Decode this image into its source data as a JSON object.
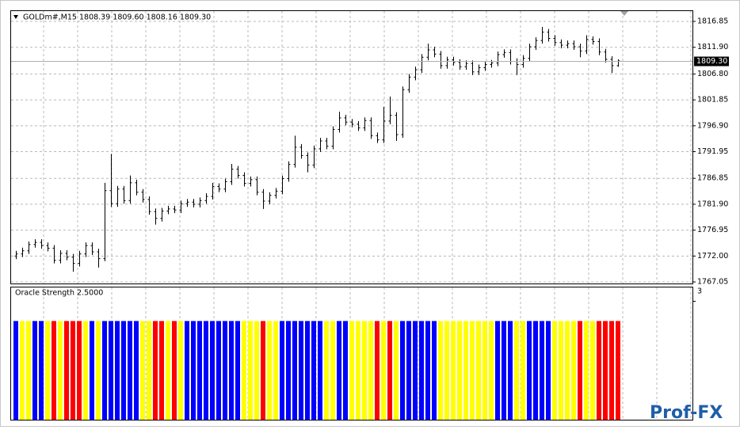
{
  "chart_data": [
    {
      "type": "ohlc",
      "title": "GOLDm#,M15  1808.39 1809.60 1808.16 1809.30",
      "color": "#000000",
      "open": [
        1772.0,
        1772.4,
        1773.0,
        1774.2,
        1774.6,
        1774.0,
        1773.5,
        1771.2,
        1772.5,
        1771.8,
        1770.6,
        1772.4,
        1774.0,
        1772.8,
        1771.5,
        1784.5,
        1782.0,
        1784.8,
        1782.6,
        1786.0,
        1784.2,
        1782.8,
        1780.5,
        1779.2,
        1780.6,
        1781.0,
        1780.8,
        1782.0,
        1782.3,
        1781.9,
        1782.6,
        1783.4,
        1785.3,
        1784.8,
        1786.2,
        1788.6,
        1787.4,
        1785.9,
        1786.6,
        1784.2,
        1782.5,
        1783.6,
        1784.4,
        1786.8,
        1789.5,
        1792.8,
        1791.2,
        1789.4,
        1792.5,
        1794.0,
        1793.0,
        1796.2,
        1798.4,
        1797.6,
        1797.2,
        1796.5,
        1797.9,
        1795.0,
        1794.2,
        1797.8,
        1798.9,
        1795.2,
        1803.8,
        1806.2,
        1807.6,
        1810.0,
        1811.4,
        1810.6,
        1808.4,
        1809.5,
        1809.0,
        1808.2,
        1808.8,
        1807.2,
        1808.0,
        1808.6,
        1808.9,
        1810.5,
        1810.9,
        1809.2,
        1808.6,
        1809.8,
        1812.0,
        1813.2,
        1814.8,
        1813.6,
        1812.8,
        1812.3,
        1812.6,
        1812.0,
        1811.2,
        1813.4,
        1813.0,
        1811.0,
        1809.6,
        1808.39
      ],
      "high": [
        1773.0,
        1773.6,
        1774.8,
        1775.2,
        1775.2,
        1774.6,
        1774.1,
        1773.1,
        1773.1,
        1772.4,
        1773.0,
        1774.6,
        1774.6,
        1773.4,
        1786.0,
        1791.5,
        1785.4,
        1785.4,
        1787.4,
        1786.6,
        1784.8,
        1783.4,
        1781.1,
        1781.2,
        1781.6,
        1781.6,
        1782.6,
        1782.9,
        1782.9,
        1783.2,
        1784.0,
        1786.0,
        1785.9,
        1786.8,
        1789.6,
        1789.2,
        1788.0,
        1787.2,
        1787.2,
        1784.8,
        1784.2,
        1785.0,
        1787.4,
        1790.1,
        1795.0,
        1793.4,
        1791.8,
        1793.1,
        1794.6,
        1794.6,
        1796.8,
        1799.6,
        1799.0,
        1798.2,
        1797.8,
        1798.5,
        1798.5,
        1795.6,
        1800.5,
        1802.5,
        1799.5,
        1804.4,
        1806.8,
        1808.2,
        1810.6,
        1812.6,
        1812.0,
        1811.2,
        1810.1,
        1810.1,
        1809.6,
        1809.4,
        1809.4,
        1808.6,
        1809.2,
        1809.5,
        1811.1,
        1811.5,
        1811.5,
        1809.8,
        1810.4,
        1812.6,
        1813.8,
        1815.8,
        1815.4,
        1814.2,
        1813.4,
        1813.2,
        1813.2,
        1812.6,
        1814.2,
        1814.0,
        1813.6,
        1811.6,
        1810.2,
        1809.6
      ],
      "low": [
        1771.4,
        1771.8,
        1772.4,
        1773.6,
        1773.4,
        1772.9,
        1770.6,
        1770.6,
        1771.2,
        1769.0,
        1770.0,
        1771.8,
        1772.2,
        1769.8,
        1771.0,
        1781.4,
        1781.4,
        1782.0,
        1782.0,
        1783.6,
        1782.2,
        1779.9,
        1778.0,
        1778.6,
        1780.0,
        1780.2,
        1780.2,
        1781.4,
        1781.3,
        1781.3,
        1782.0,
        1782.8,
        1784.2,
        1784.2,
        1785.6,
        1786.8,
        1785.3,
        1785.3,
        1783.6,
        1781.0,
        1781.9,
        1783.0,
        1783.8,
        1786.2,
        1788.9,
        1790.6,
        1788.0,
        1788.8,
        1791.9,
        1792.4,
        1792.4,
        1795.6,
        1797.0,
        1796.6,
        1795.9,
        1795.9,
        1794.4,
        1793.6,
        1793.6,
        1797.2,
        1794.0,
        1794.6,
        1803.2,
        1805.6,
        1807.0,
        1809.4,
        1810.0,
        1807.8,
        1807.8,
        1808.4,
        1807.6,
        1807.6,
        1806.6,
        1806.6,
        1807.4,
        1808.0,
        1808.3,
        1809.9,
        1808.6,
        1806.6,
        1808.0,
        1809.2,
        1811.4,
        1812.6,
        1813.0,
        1812.2,
        1811.7,
        1811.7,
        1811.4,
        1810.0,
        1810.6,
        1812.4,
        1810.4,
        1809.0,
        1807.0,
        1808.16
      ],
      "close": [
        1772.4,
        1773.0,
        1774.2,
        1774.6,
        1774.0,
        1773.5,
        1771.2,
        1772.5,
        1771.8,
        1770.6,
        1772.4,
        1774.0,
        1772.8,
        1771.5,
        1784.5,
        1782.0,
        1784.8,
        1782.6,
        1786.0,
        1784.2,
        1782.8,
        1780.5,
        1779.2,
        1780.6,
        1781.0,
        1780.8,
        1782.0,
        1782.3,
        1781.9,
        1782.6,
        1783.4,
        1785.3,
        1784.8,
        1786.2,
        1788.6,
        1787.4,
        1785.9,
        1786.6,
        1784.2,
        1782.5,
        1783.6,
        1784.4,
        1786.8,
        1789.5,
        1792.8,
        1791.2,
        1789.4,
        1792.5,
        1794.0,
        1793.0,
        1796.2,
        1798.4,
        1797.6,
        1797.2,
        1796.5,
        1797.9,
        1795.0,
        1794.2,
        1797.8,
        1798.9,
        1795.2,
        1803.8,
        1806.2,
        1807.6,
        1810.0,
        1811.4,
        1810.6,
        1808.4,
        1809.5,
        1809.0,
        1808.2,
        1808.8,
        1807.2,
        1808.0,
        1808.6,
        1808.9,
        1810.5,
        1810.9,
        1809.2,
        1808.6,
        1809.8,
        1812.0,
        1813.2,
        1814.8,
        1813.6,
        1812.8,
        1812.3,
        1812.6,
        1812.0,
        1811.2,
        1813.4,
        1813.0,
        1811.0,
        1809.6,
        1808.4,
        1809.3
      ],
      "ylim": [
        1766.75,
        1818.82
      ],
      "yticks": [
        1767.05,
        {
          "value": 1772,
          "label": "1772.00"
        },
        1776.95,
        {
          "value": 1781.9,
          "label": "1781.90"
        },
        1786.85,
        1791.95,
        {
          "value": 1796.9,
          "label": "1796.90"
        },
        1801.85,
        {
          "value": 1806.8,
          "label": "1806.80"
        },
        {
          "value": 1811.9,
          "label": "1811.90"
        },
        1816.85
      ],
      "current_price": {
        "value": 1809.3,
        "label": "1809.30"
      },
      "grid": true
    },
    {
      "type": "bar",
      "title": "Oracle Strength 2.5000",
      "values": [
        2.5,
        2.5,
        2.5,
        2.5,
        2.5,
        2.5,
        2.5,
        2.5,
        2.5,
        2.5,
        2.5,
        2.5,
        2.5,
        2.5,
        2.5,
        2.5,
        2.5,
        2.5,
        2.5,
        2.5,
        2.5,
        2.5,
        2.5,
        2.5,
        2.5,
        2.5,
        2.5,
        2.5,
        2.5,
        2.5,
        2.5,
        2.5,
        2.5,
        2.5,
        2.5,
        2.5,
        2.5,
        2.5,
        2.5,
        2.5,
        2.5,
        2.5,
        2.5,
        2.5,
        2.5,
        2.5,
        2.5,
        2.5,
        2.5,
        2.5,
        2.5,
        2.5,
        2.5,
        2.5,
        2.5,
        2.5,
        2.5,
        2.5,
        2.5,
        2.5,
        2.5,
        2.5,
        2.5,
        2.5,
        2.5,
        2.5,
        2.5,
        2.5,
        2.5,
        2.5,
        2.5,
        2.5,
        2.5,
        2.5,
        2.5,
        2.5,
        2.5,
        2.5,
        2.5,
        2.5,
        2.5,
        2.5,
        2.5,
        2.5,
        2.5,
        2.5,
        2.5,
        2.5,
        2.5,
        2.5,
        2.5,
        2.5,
        2.5,
        2.5,
        2.5,
        2.5
      ],
      "colors": [
        "#0000ff",
        "#ffff00",
        "#ffff00",
        "#0000ff",
        "#0000ff",
        "#ffff00",
        "#ff0000",
        "#ffff00",
        "#ff0000",
        "#ff0000",
        "#ff0000",
        "#ffff00",
        "#0000ff",
        "#ffff00",
        "#0000ff",
        "#0000ff",
        "#0000ff",
        "#0000ff",
        "#0000ff",
        "#0000ff",
        "#ffff00",
        "#ffff00",
        "#ff0000",
        "#ff0000",
        "#ffff00",
        "#ff0000",
        "#ffff00",
        "#0000ff",
        "#0000ff",
        "#0000ff",
        "#0000ff",
        "#0000ff",
        "#0000ff",
        "#0000ff",
        "#0000ff",
        "#0000ff",
        "#ffff00",
        "#ffff00",
        "#ffff00",
        "#ff0000",
        "#ffff00",
        "#ffff00",
        "#0000ff",
        "#0000ff",
        "#0000ff",
        "#0000ff",
        "#0000ff",
        "#0000ff",
        "#0000ff",
        "#ffff00",
        "#ffff00",
        "#0000ff",
        "#0000ff",
        "#ffff00",
        "#ffff00",
        "#ffff00",
        "#ffff00",
        "#ff0000",
        "#ffff00",
        "#ff0000",
        "#ffff00",
        "#0000ff",
        "#0000ff",
        "#0000ff",
        "#0000ff",
        "#0000ff",
        "#0000ff",
        "#ffff00",
        "#ffff00",
        "#ffff00",
        "#ffff00",
        "#ffff00",
        "#ffff00",
        "#ffff00",
        "#ffff00",
        "#ffff00",
        "#0000ff",
        "#0000ff",
        "#0000ff",
        "#ffff00",
        "#ffff00",
        "#0000ff",
        "#0000ff",
        "#0000ff",
        "#0000ff",
        "#ffff00",
        "#ffff00",
        "#ffff00",
        "#ffff00",
        "#ff0000",
        "#ffff00",
        "#ffff00",
        "#ff0000",
        "#ff0000",
        "#ff0000",
        "#ff0000"
      ],
      "ylim": [
        0,
        3.35
      ],
      "yticks": [
        3
      ]
    }
  ],
  "watermark": "Prof-FX"
}
